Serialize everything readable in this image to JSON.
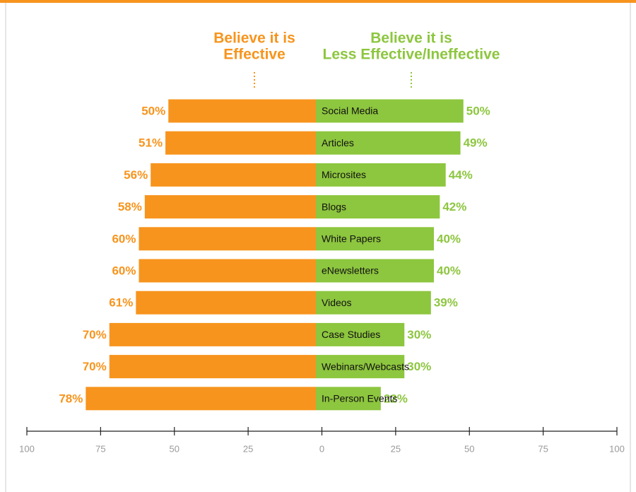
{
  "chart_data": {
    "type": "diverging_bar",
    "categories": [
      "Social Media",
      "Articles",
      "Microsites",
      "Blogs",
      "White Papers",
      "eNewsletters",
      "Videos",
      "Case Studies",
      "Webinars/Webcasts",
      "In-Person Events"
    ],
    "series": [
      {
        "name_lines": [
          "Believe it is",
          "Effective"
        ],
        "color": "#f7941d",
        "side": "left",
        "values": [
          50,
          51,
          56,
          58,
          60,
          60,
          61,
          70,
          70,
          78
        ],
        "value_labels": [
          "50%",
          "51%",
          "56%",
          "58%",
          "60%",
          "60%",
          "61%",
          "70%",
          "70%",
          "78%"
        ]
      },
      {
        "name_lines": [
          "Believe it is",
          "Less Effective/Ineffective"
        ],
        "color": "#8dc63f",
        "side": "right",
        "values": [
          50,
          49,
          44,
          42,
          40,
          40,
          39,
          30,
          30,
          22
        ],
        "value_labels": [
          "50%",
          "49%",
          "44%",
          "42%",
          "40%",
          "40%",
          "39%",
          "30%",
          "30%",
          "22%"
        ]
      }
    ],
    "xlim": [
      -100,
      100
    ],
    "xticks": [
      {
        "value": -100,
        "label": "100"
      },
      {
        "value": -75,
        "label": "75"
      },
      {
        "value": -50,
        "label": "50"
      },
      {
        "value": -25,
        "label": "25"
      },
      0,
      25,
      50,
      75,
      100
    ]
  }
}
